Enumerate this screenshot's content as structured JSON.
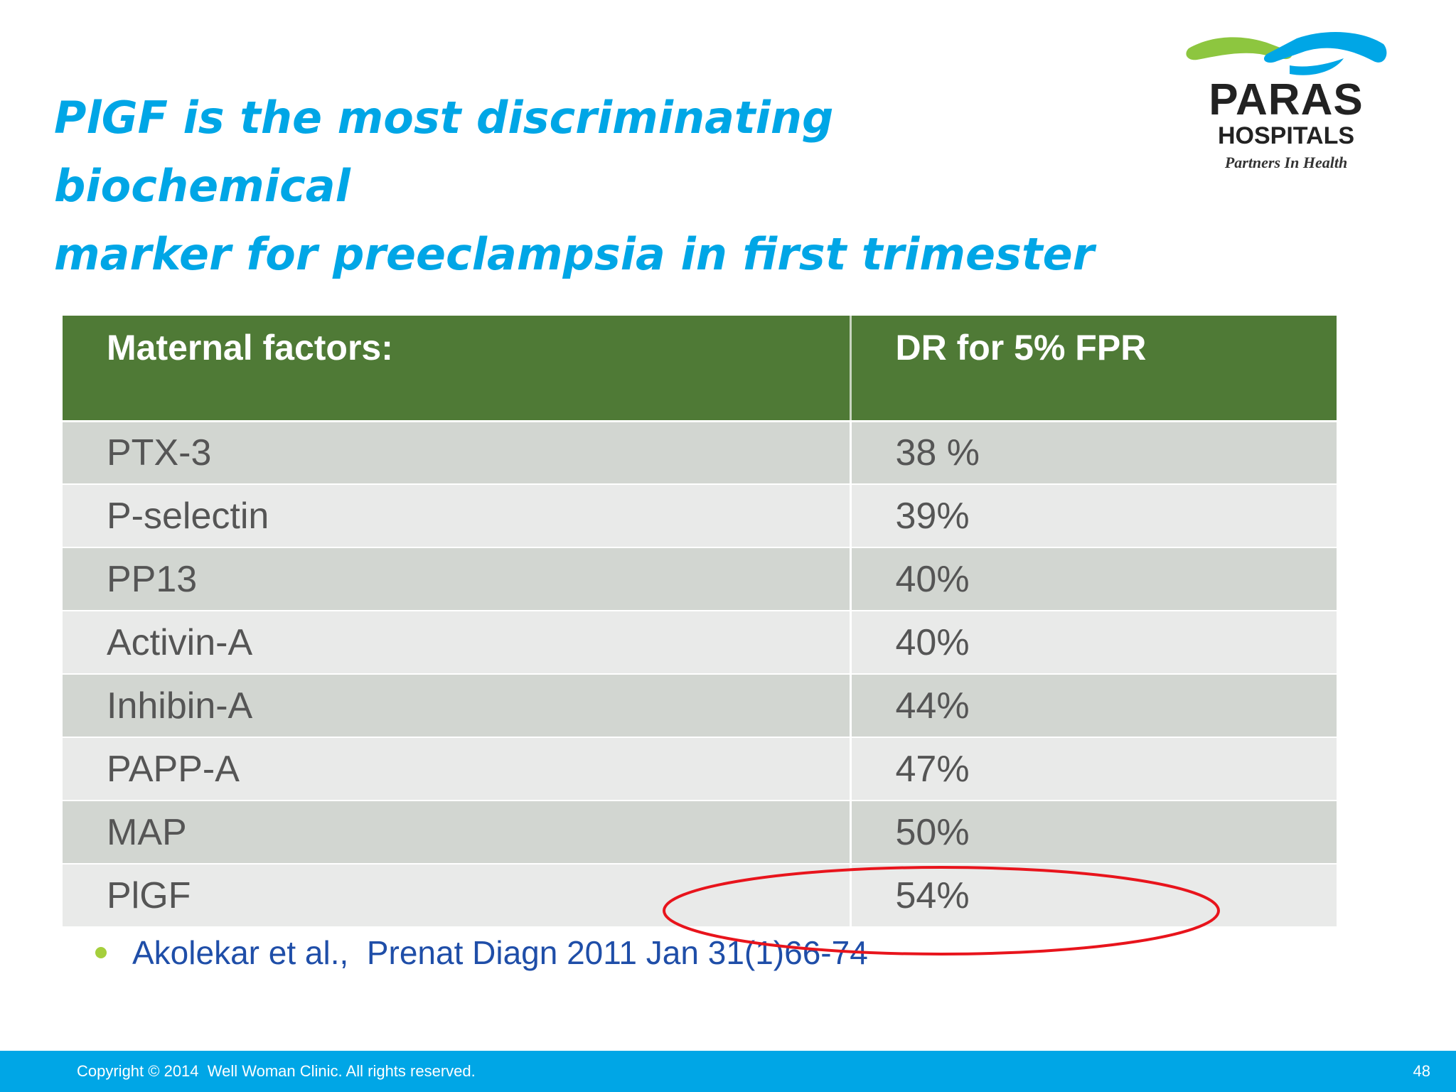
{
  "slide": {
    "title_line1": "PlGF is the most discriminating biochemical",
    "title_line2": "marker for preeclampsia in first trimester",
    "page_number": "48"
  },
  "logo": {
    "name": "PARAS",
    "subname": "HOSPITALS",
    "tagline": "Partners In Health",
    "colors": {
      "green": "#8dc63f",
      "blue": "#00a6e6",
      "text": "#222222"
    }
  },
  "table": {
    "headers": [
      "Maternal factors:",
      "DR for 5% FPR"
    ],
    "rows": [
      {
        "marker": "PTX-3",
        "dr": "38 %"
      },
      {
        "marker": "P-selectin",
        "dr": "39%"
      },
      {
        "marker": "PP13",
        "dr": "40%"
      },
      {
        "marker": "Activin-A",
        "dr": "40%"
      },
      {
        "marker": "Inhibin-A",
        "dr": "44%"
      },
      {
        "marker": "PAPP-A",
        "dr": "47%"
      },
      {
        "marker": "MAP",
        "dr": "50%"
      },
      {
        "marker": "PlGF",
        "dr": "54%"
      }
    ],
    "colors": {
      "header": "#4f7a36",
      "row_odd": "#d2d6d1",
      "row_even": "#e9eae9"
    }
  },
  "citation": {
    "text": "Akolekar et al.,  Prenat Diagn 2011 Jan 31(1)66-74"
  },
  "annotation": {
    "type": "red-ellipse",
    "highlighted_row": "PlGF",
    "color": "#e8141c"
  },
  "footer": {
    "copyright": "Copyright © 2014  Well Woman Clinic. All rights reserved.",
    "color": "#00a6e6"
  }
}
